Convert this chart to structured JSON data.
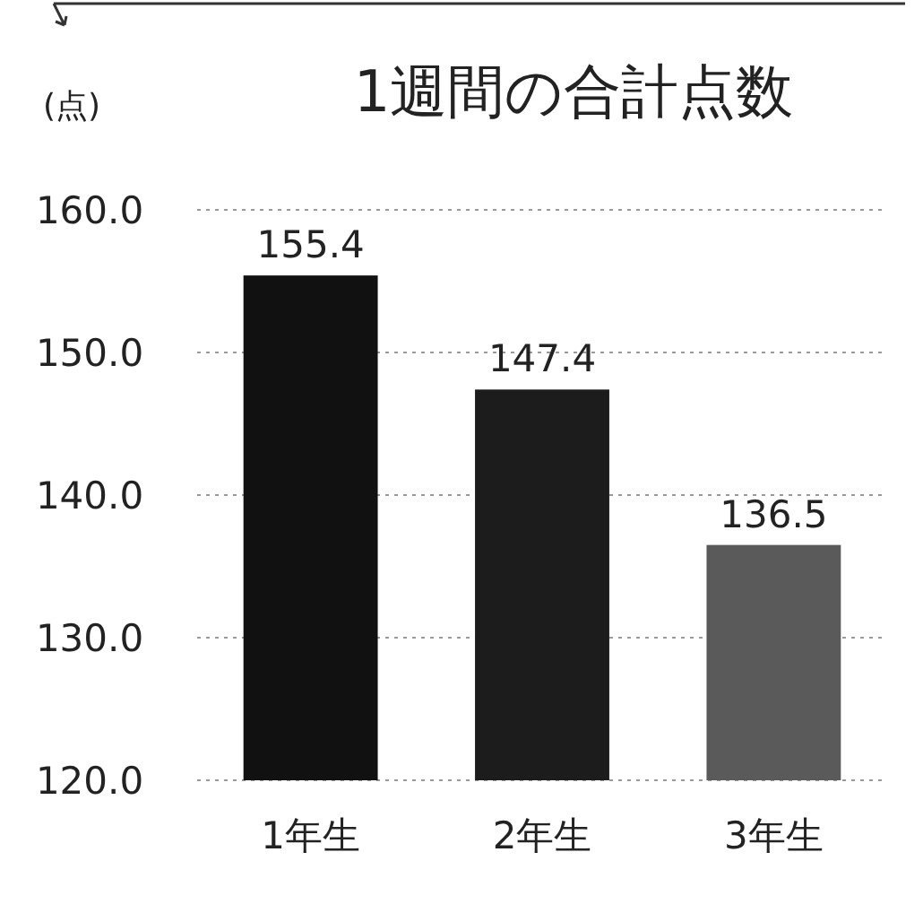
{
  "chart_data": {
    "type": "bar",
    "title": "1週間の合計点数",
    "ylabel": "(点)",
    "categories": [
      "1年生",
      "2年生",
      "3年生"
    ],
    "values": [
      155.4,
      147.4,
      136.5
    ],
    "colors": [
      "#111111",
      "#1c1c1c",
      "#5a5a5a"
    ],
    "ylim": [
      120,
      160
    ],
    "yticks": [
      {
        "value": 120,
        "label": "120.0"
      },
      {
        "value": 130,
        "label": "130.0"
      },
      {
        "value": 140,
        "label": "140.0"
      },
      {
        "value": 150,
        "label": "150.0"
      },
      {
        "value": 160,
        "label": "160.0"
      }
    ],
    "grid": "y",
    "data_labels": true
  }
}
